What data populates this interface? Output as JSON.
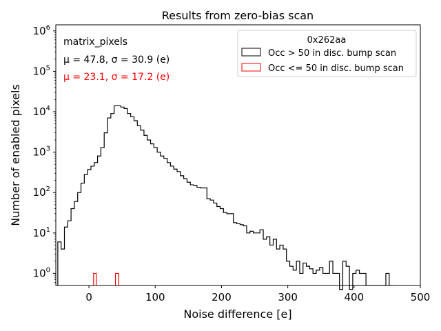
{
  "chart_data": {
    "type": "step-histogram",
    "title": "Results from zero-bias scan",
    "xlabel": "Noise difference [e]",
    "ylabel": "Number of enabled pixels",
    "xlim": [
      -50,
      500
    ],
    "ylim_log10": [
      -0.3,
      6.15
    ],
    "yscale": "log",
    "x_ticks": [
      0,
      100,
      200,
      300,
      400,
      500
    ],
    "x_tick_labels": [
      "0",
      "100",
      "200",
      "300",
      "400",
      "500"
    ],
    "y_ticks": [
      1,
      10,
      100,
      1000,
      10000,
      100000,
      1000000
    ],
    "y_tick_labels": [
      "10^0",
      "10^1",
      "10^2",
      "10^3",
      "10^4",
      "10^5",
      "10^6"
    ],
    "annotations": {
      "name": "matrix_pixels",
      "stats_black": "μ = 47.8, σ = 30.9 (e)",
      "stats_red": "μ = 23.1, σ = 17.2 (e)"
    },
    "legend": {
      "placement": "top-right",
      "title": "0x262aa",
      "entries": [
        "Occ > 50 in disc. bump scan",
        "Occ <= 50 in disc. bump scan"
      ]
    },
    "series": [
      {
        "name": "Occ > 50 in disc. bump scan",
        "color": "#000000",
        "bin_start": -47,
        "bin_width": 5,
        "values": [
          6,
          4,
          14,
          20,
          40,
          60,
          100,
          170,
          280,
          370,
          450,
          550,
          800,
          1300,
          3000,
          7000,
          9000,
          14000,
          14000,
          13000,
          12000,
          9000,
          7500,
          6000,
          4500,
          3500,
          2600,
          2000,
          1600,
          1300,
          1000,
          800,
          700,
          550,
          450,
          380,
          330,
          260,
          220,
          180,
          155,
          150,
          135,
          130,
          130,
          70,
          65,
          55,
          45,
          40,
          32,
          30,
          30,
          18,
          17,
          16,
          15,
          10,
          11,
          10,
          10,
          12,
          7,
          8,
          5,
          7,
          4,
          5,
          4,
          2,
          1.5,
          1.2,
          2,
          1,
          1.8,
          1.5,
          1.3,
          1,
          1.2,
          1.4,
          1,
          1,
          2,
          1,
          1,
          0.4,
          2,
          1.5,
          0.4,
          1,
          1.2,
          1,
          1,
          0.5,
          0.5,
          0.5,
          0.5,
          0.5,
          0.5,
          1,
          0.5
        ]
      },
      {
        "name": "Occ <= 50 in disc. bump scan",
        "color": "#ff0000",
        "bars": [
          {
            "x": [
              7,
              11
            ],
            "y": 1
          },
          {
            "x": [
              40,
              45
            ],
            "y": 1
          }
        ]
      }
    ]
  }
}
